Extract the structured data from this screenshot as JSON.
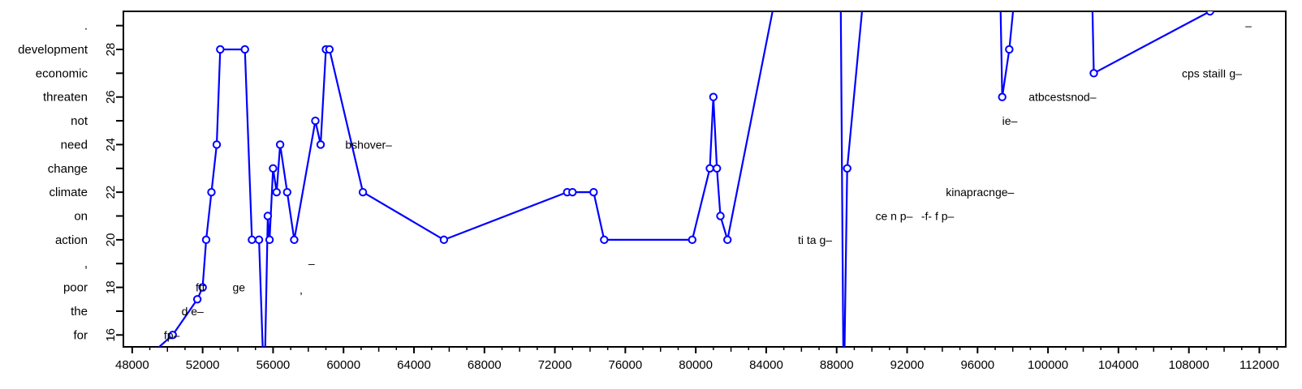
{
  "chart_data": {
    "type": "line",
    "title": "",
    "xlabel": "",
    "ylabel": "",
    "xlim": [
      47500,
      113500
    ],
    "ylim": [
      15.5,
      29.6
    ],
    "x_ticks": [
      48000,
      52000,
      56000,
      60000,
      64000,
      68000,
      72000,
      76000,
      80000,
      84000,
      88000,
      92000,
      96000,
      100000,
      104000,
      108000,
      112000
    ],
    "x_tick_labels": [
      "48000",
      "52000",
      "56000",
      "60000",
      "64000",
      "68000",
      "72000",
      "76000",
      "80000",
      "84000",
      "88000",
      "92000",
      "96000",
      "100000",
      "104000",
      "108000",
      "112000"
    ],
    "y_ticks": [
      16,
      18,
      20,
      22,
      24,
      26,
      28
    ],
    "y_tick_labels": [
      "16",
      "18",
      "20",
      "22",
      "24",
      "26",
      "28"
    ],
    "y_categories": [
      {
        "y": 16,
        "label": "for"
      },
      {
        "y": 17,
        "label": "the"
      },
      {
        "y": 18,
        "label": "poor"
      },
      {
        "y": 19,
        "label": ","
      },
      {
        "y": 20,
        "label": "action"
      },
      {
        "y": 21,
        "label": "on"
      },
      {
        "y": 22,
        "label": "climate"
      },
      {
        "y": 23,
        "label": "change"
      },
      {
        "y": 24,
        "label": "need"
      },
      {
        "y": 25,
        "label": "not"
      },
      {
        "y": 26,
        "label": "threaten"
      },
      {
        "y": 27,
        "label": "economic"
      },
      {
        "y": 28,
        "label": "development"
      },
      {
        "y": 29,
        "label": "."
      }
    ],
    "series": [
      {
        "color": "#0000ff",
        "x": [
          48000,
          50300,
          51700,
          52000,
          52200,
          52500,
          52800,
          53000,
          54400,
          54800,
          55200,
          55500,
          55700,
          55800,
          56000,
          56200,
          56400,
          56800,
          57200,
          58400,
          58700,
          59000,
          59200,
          61100,
          65700,
          72700,
          73000,
          74200,
          74800,
          79800,
          80800,
          81000,
          81200,
          81400,
          81800,
          85800,
          88200,
          88400,
          88600,
          90000,
          97200,
          97400,
          97800,
          98600,
          102400,
          102600,
          109200
        ],
        "y": [
          14.5,
          16,
          17.5,
          18,
          20,
          22,
          24,
          28,
          28,
          20,
          20,
          13.5,
          21,
          20,
          23,
          22,
          24,
          22,
          20,
          25,
          24,
          28,
          28,
          22,
          20,
          22,
          22,
          22,
          20,
          20,
          23,
          26,
          23,
          21,
          20,
          35,
          33,
          13,
          23,
          34,
          34,
          26,
          28,
          34,
          34,
          27,
          29.6
        ]
      }
    ],
    "annotations": [
      {
        "x": 49800,
        "y": 16,
        "text": "fp–"
      },
      {
        "x": 50800,
        "y": 17,
        "text": "d e–"
      },
      {
        "x": 51600,
        "y": 18,
        "text": "ftt"
      },
      {
        "x": 53700,
        "y": 18,
        "text": "ge"
      },
      {
        "x": 57500,
        "y": 17.9,
        "text": ","
      },
      {
        "x": 58000,
        "y": 19,
        "text": "–"
      },
      {
        "x": 60100,
        "y": 24,
        "text": "bshover–"
      },
      {
        "x": 85800,
        "y": 20,
        "text": "ti  ta g–"
      },
      {
        "x": 90200,
        "y": 21,
        "text": "ce n p–"
      },
      {
        "x": 92800,
        "y": 21,
        "text": "-f- f p–",
        "color": "#e00000"
      },
      {
        "x": 94200,
        "y": 22,
        "text": "kinapracnge–"
      },
      {
        "x": 97400,
        "y": 25,
        "text": "ie–"
      },
      {
        "x": 98900,
        "y": 26,
        "text": "atbcestsnod–"
      },
      {
        "x": 107600,
        "y": 27,
        "text": "cps stailI g–"
      },
      {
        "x": 111200,
        "y": 29,
        "text": "–"
      }
    ]
  }
}
